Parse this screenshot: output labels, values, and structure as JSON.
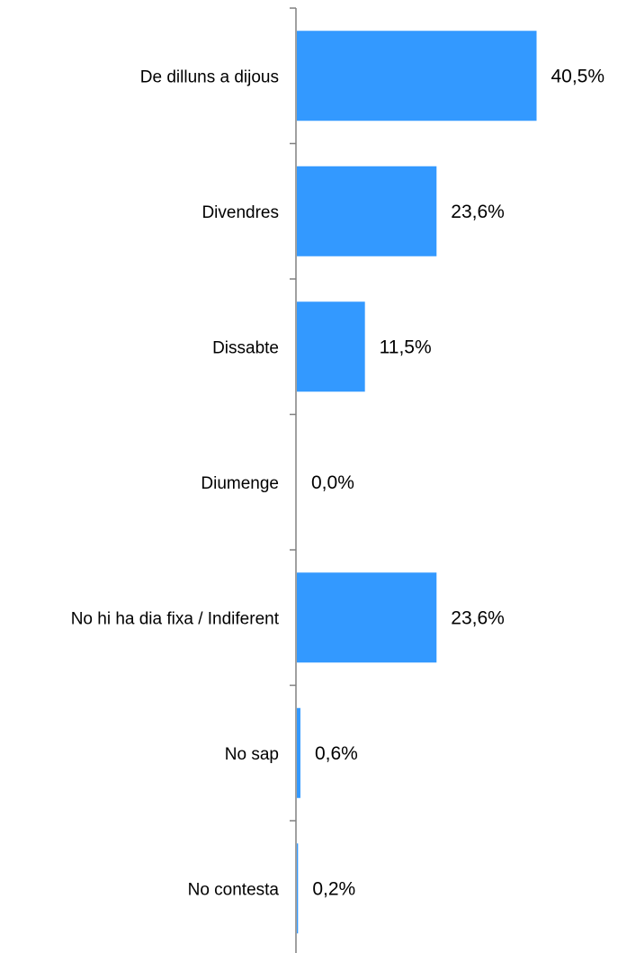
{
  "chart_data": {
    "type": "bar",
    "orientation": "horizontal",
    "categories": [
      "De dilluns a dijous",
      "Divendres",
      "Dissabte",
      "Diumenge",
      "No hi ha dia fixa / Indiferent",
      "No sap",
      "No contesta"
    ],
    "values": [
      40.5,
      23.6,
      11.5,
      0.0,
      23.6,
      0.6,
      0.2
    ],
    "data_labels": [
      "40,5%",
      "23,6%",
      "11,5%",
      "0,0%",
      "23,6%",
      "0,6%",
      "0,2%"
    ],
    "title": "",
    "xlabel": "",
    "ylabel": "",
    "xlim": [
      0,
      50
    ],
    "grid": false,
    "legend": "none",
    "bar_color": "#3399FF",
    "axis_color": "#808080"
  }
}
